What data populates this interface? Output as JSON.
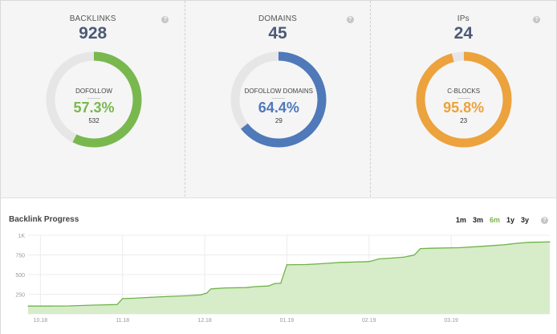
{
  "stats": [
    {
      "label": "BACKLINKS",
      "value": "928",
      "sub_label": "DOFOLLOW",
      "percent_text": "57.3%",
      "count": "532",
      "percent": 57.3,
      "color": "#79b84f"
    },
    {
      "label": "DOMAINS",
      "value": "45",
      "sub_label": "DOFOLLOW DOMAINS",
      "percent_text": "64.4%",
      "count": "29",
      "percent": 64.4,
      "color": "#4f79b9"
    },
    {
      "label": "IPs",
      "value": "24",
      "sub_label": "C-BLOCKS",
      "percent_text": "95.8%",
      "count": "23",
      "percent": 95.8,
      "color": "#eca23d"
    }
  ],
  "help_glyph": "?",
  "progress": {
    "title": "Backlink Progress",
    "ranges": [
      "1m",
      "3m",
      "6m",
      "1y",
      "3y"
    ],
    "active_range": "6m"
  },
  "colors": {
    "track": "#e6e6e6",
    "line": "#6fb44a",
    "fill": "#d7ecc9",
    "grid": "#ececec",
    "title": "#4d5a75"
  },
  "chart_data": {
    "type": "area",
    "x": [
      "10.18",
      "11.18",
      "12.18",
      "01.19",
      "02.19",
      "03.19"
    ],
    "y_ticks": [
      "250",
      "500",
      "750",
      "1K"
    ],
    "ylim": [
      0,
      1000
    ],
    "series": [
      {
        "values": [
          [
            0,
            100
          ],
          [
            0.5,
            100
          ],
          [
            1,
            102
          ],
          [
            1.6,
            112
          ],
          [
            2.05,
            118
          ],
          [
            2.17,
            120
          ],
          [
            2.3,
            195
          ],
          [
            2.6,
            200
          ],
          [
            3,
            212
          ],
          [
            3.4,
            222
          ],
          [
            3.9,
            232
          ],
          [
            4.2,
            242
          ],
          [
            4.35,
            265
          ],
          [
            4.45,
            318
          ],
          [
            4.55,
            322
          ],
          [
            4.8,
            330
          ],
          [
            5.3,
            335
          ],
          [
            5.55,
            348
          ],
          [
            5.85,
            355
          ],
          [
            6.0,
            385
          ],
          [
            6.15,
            390
          ],
          [
            6.3,
            625
          ],
          [
            6.8,
            628
          ],
          [
            7.2,
            640
          ],
          [
            7.6,
            655
          ],
          [
            8.0,
            660
          ],
          [
            8.3,
            665
          ],
          [
            8.55,
            700
          ],
          [
            8.9,
            712
          ],
          [
            9.15,
            722
          ],
          [
            9.4,
            748
          ],
          [
            9.55,
            830
          ],
          [
            9.8,
            835
          ],
          [
            10.5,
            842
          ],
          [
            11.0,
            858
          ],
          [
            11.3,
            868
          ],
          [
            11.6,
            880
          ],
          [
            11.9,
            898
          ],
          [
            12.2,
            910
          ],
          [
            12.7,
            915
          ]
        ]
      }
    ]
  }
}
